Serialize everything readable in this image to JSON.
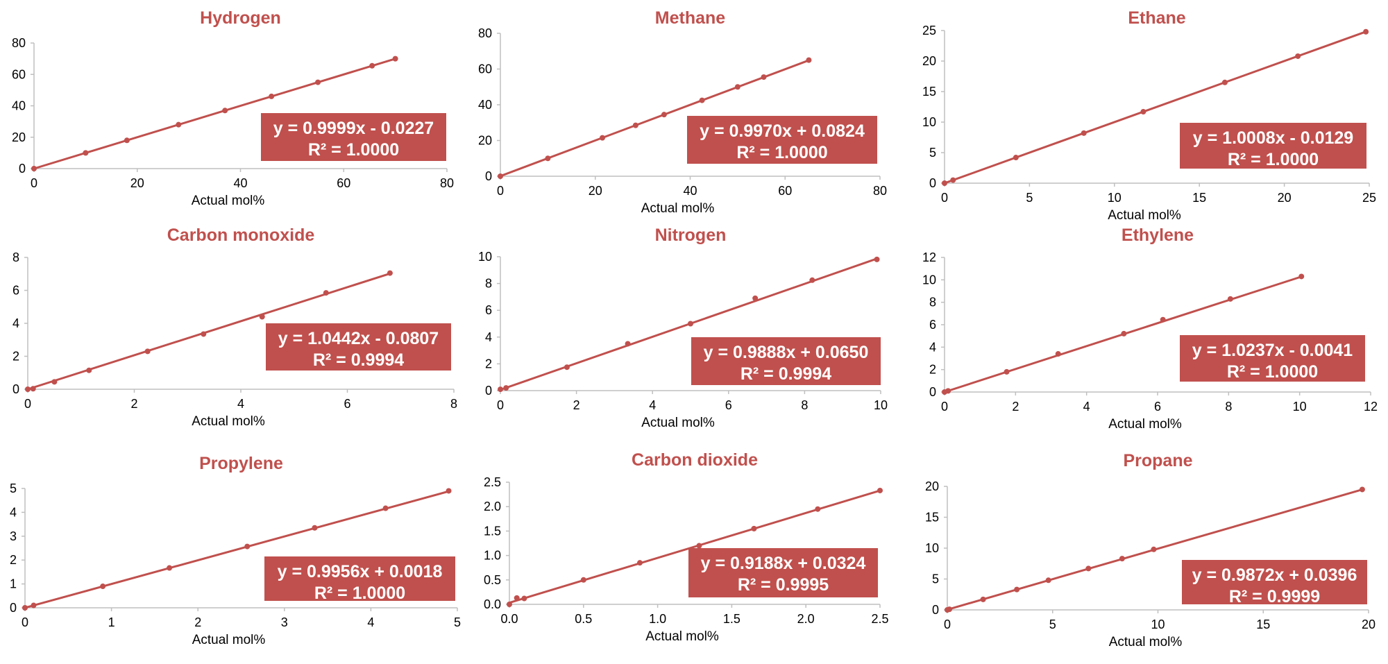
{
  "style": {
    "series_color": "#c0504d",
    "axis_color": "#bfbfbf",
    "box_color": "#c0504d",
    "box_text_color": "#ffffff"
  },
  "chart_data": [
    {
      "type": "scatter",
      "title": "Hydrogen",
      "xlabel": "Actual mol%",
      "ylabel": "",
      "xlim": [
        0,
        80
      ],
      "ylim": [
        0,
        80
      ],
      "xticks": [
        0,
        20,
        40,
        60,
        80
      ],
      "yticks": [
        0,
        20,
        40,
        60,
        80
      ],
      "tick_decimals": 0,
      "x": [
        0,
        10,
        18,
        28,
        37,
        46,
        55,
        65.5,
        70
      ],
      "y": [
        0,
        10,
        18,
        28,
        37,
        46,
        55,
        65.5,
        70
      ],
      "trendline": {
        "slope": 0.9999,
        "intercept": -0.0227,
        "x_range": [
          0,
          70
        ]
      },
      "equation": "y = 0.9999x - 0.0227",
      "r2": "R² = 1.0000"
    },
    {
      "type": "scatter",
      "title": "Methane",
      "xlabel": "Actual mol%",
      "ylabel": "",
      "xlim": [
        0,
        80
      ],
      "ylim": [
        0,
        80
      ],
      "xticks": [
        0,
        20,
        40,
        60,
        80
      ],
      "yticks": [
        0,
        20,
        40,
        60,
        80
      ],
      "tick_decimals": 0,
      "x": [
        0,
        10,
        21.5,
        28.5,
        34.5,
        42.5,
        50,
        55.5,
        65
      ],
      "y": [
        0,
        10,
        21.5,
        28.5,
        34.5,
        42.5,
        50,
        55.5,
        65
      ],
      "trendline": {
        "slope": 0.997,
        "intercept": 0.0824,
        "x_range": [
          0,
          65
        ]
      },
      "equation": "y = 0.9970x + 0.0824",
      "r2": "R² = 1.0000"
    },
    {
      "type": "scatter",
      "title": "Ethane",
      "xlabel": "Actual mol%",
      "ylabel": "",
      "xlim": [
        0,
        25
      ],
      "ylim": [
        0,
        25
      ],
      "xticks": [
        0,
        5,
        10,
        15,
        20,
        25
      ],
      "yticks": [
        0,
        5,
        10,
        15,
        20,
        25
      ],
      "tick_decimals": 0,
      "x": [
        0,
        0.5,
        4.2,
        8.2,
        11.7,
        16.5,
        20.8,
        24.8
      ],
      "y": [
        0,
        0.5,
        4.2,
        8.2,
        11.7,
        16.5,
        20.8,
        24.8
      ],
      "trendline": {
        "slope": 1.0008,
        "intercept": -0.0129,
        "x_range": [
          0,
          24.8
        ]
      },
      "equation": "y = 1.0008x - 0.0129",
      "r2": "R² = 1.0000"
    },
    {
      "type": "scatter",
      "title": "Carbon monoxide",
      "xlabel": "Actual mol%",
      "ylabel": "",
      "xlim": [
        0,
        8
      ],
      "ylim": [
        0,
        8
      ],
      "xticks": [
        0,
        2,
        4,
        6,
        8
      ],
      "yticks": [
        0,
        2,
        4,
        6,
        8
      ],
      "tick_decimals": 0,
      "x": [
        0,
        0.1,
        0.5,
        1.15,
        2.25,
        3.3,
        4.4,
        5.6,
        6.8
      ],
      "y": [
        0,
        0.03,
        0.45,
        1.15,
        2.3,
        3.35,
        4.4,
        5.85,
        7.05
      ],
      "trendline": {
        "slope": 1.0442,
        "intercept": -0.0807,
        "x_range": [
          0,
          6.8
        ]
      },
      "equation": "y = 1.0442x - 0.0807",
      "r2": "R² = 0.9994"
    },
    {
      "type": "scatter",
      "title": "Nitrogen",
      "xlabel": "Actual mol%",
      "ylabel": "",
      "xlim": [
        0,
        10
      ],
      "ylim": [
        0,
        10
      ],
      "xticks": [
        0,
        2,
        4,
        6,
        8,
        10
      ],
      "yticks": [
        0,
        2,
        4,
        6,
        8,
        10
      ],
      "tick_decimals": 0,
      "x": [
        0,
        0.15,
        1.75,
        3.35,
        5,
        6.7,
        8.2,
        9.9
      ],
      "y": [
        0.1,
        0.2,
        1.75,
        3.5,
        5,
        6.9,
        8.25,
        9.8
      ],
      "trendline": {
        "slope": 0.9888,
        "intercept": 0.065,
        "x_range": [
          0,
          9.9
        ]
      },
      "equation": "y = 0.9888x + 0.0650",
      "r2": "R² = 0.9994"
    },
    {
      "type": "scatter",
      "title": "Ethylene",
      "xlabel": "Actual mol%",
      "ylabel": "",
      "xlim": [
        0,
        12
      ],
      "ylim": [
        0,
        12
      ],
      "xticks": [
        0,
        2,
        4,
        6,
        8,
        10,
        12
      ],
      "yticks": [
        0,
        2,
        4,
        6,
        8,
        10,
        12
      ],
      "tick_decimals": 0,
      "x": [
        0,
        0.1,
        1.75,
        3.2,
        5.05,
        6.15,
        8.05,
        10.05
      ],
      "y": [
        0,
        0.1,
        1.8,
        3.4,
        5.2,
        6.45,
        8.3,
        10.3
      ],
      "trendline": {
        "slope": 1.0237,
        "intercept": -0.0041,
        "x_range": [
          0,
          10.05
        ]
      },
      "equation": "y = 1.0237x - 0.0041",
      "r2": "R² = 1.0000"
    },
    {
      "type": "scatter",
      "title": "Propylene",
      "xlabel": "Actual mol%",
      "ylabel": "",
      "xlim": [
        0,
        5
      ],
      "ylim": [
        0,
        5
      ],
      "xticks": [
        0,
        1,
        2,
        3,
        4,
        5
      ],
      "yticks": [
        0,
        1,
        2,
        3,
        4,
        5
      ],
      "tick_decimals": 0,
      "x": [
        0,
        0.1,
        0.9,
        1.67,
        2.57,
        3.35,
        4.17,
        4.9
      ],
      "y": [
        0,
        0.1,
        0.9,
        1.67,
        2.57,
        3.35,
        4.17,
        4.9
      ],
      "trendline": {
        "slope": 0.9956,
        "intercept": 0.0018,
        "x_range": [
          0,
          4.9
        ]
      },
      "equation": "y = 0.9956x + 0.0018",
      "r2": "R² = 1.0000"
    },
    {
      "type": "scatter",
      "title": "Carbon dioxide",
      "xlabel": "Actual mol%",
      "ylabel": "",
      "xlim": [
        0,
        2.5
      ],
      "ylim": [
        0,
        2.5
      ],
      "xticks": [
        0,
        0.5,
        1,
        1.5,
        2,
        2.5
      ],
      "yticks": [
        0,
        0.5,
        1,
        1.5,
        2,
        2.5
      ],
      "tick_decimals": 1,
      "x": [
        0,
        0.05,
        0.1,
        0.5,
        0.88,
        1.28,
        1.65,
        2.08,
        2.5
      ],
      "y": [
        0,
        0.13,
        0.12,
        0.5,
        0.85,
        1.2,
        1.55,
        1.95,
        2.33
      ],
      "trendline": {
        "slope": 0.9188,
        "intercept": 0.0324,
        "x_range": [
          0,
          2.5
        ]
      },
      "equation": "y = 0.9188x + 0.0324",
      "r2": "R² = 0.9995"
    },
    {
      "type": "scatter",
      "title": "Propane",
      "xlabel": "Actual mol%",
      "ylabel": "",
      "xlim": [
        0,
        20
      ],
      "ylim": [
        0,
        20
      ],
      "xticks": [
        0,
        5,
        10,
        15,
        20
      ],
      "yticks": [
        0,
        5,
        10,
        15,
        20
      ],
      "tick_decimals": 0,
      "x": [
        0,
        0.1,
        1.7,
        3.3,
        4.8,
        6.7,
        8.3,
        9.8,
        19.7
      ],
      "y": [
        0,
        0.1,
        1.7,
        3.3,
        4.8,
        6.7,
        8.3,
        9.8,
        19.5
      ],
      "trendline": {
        "slope": 0.9872,
        "intercept": 0.0396,
        "x_range": [
          0,
          19.7
        ]
      },
      "equation": "y = 0.9872x + 0.0396",
      "r2": "R² = 0.9999"
    }
  ]
}
